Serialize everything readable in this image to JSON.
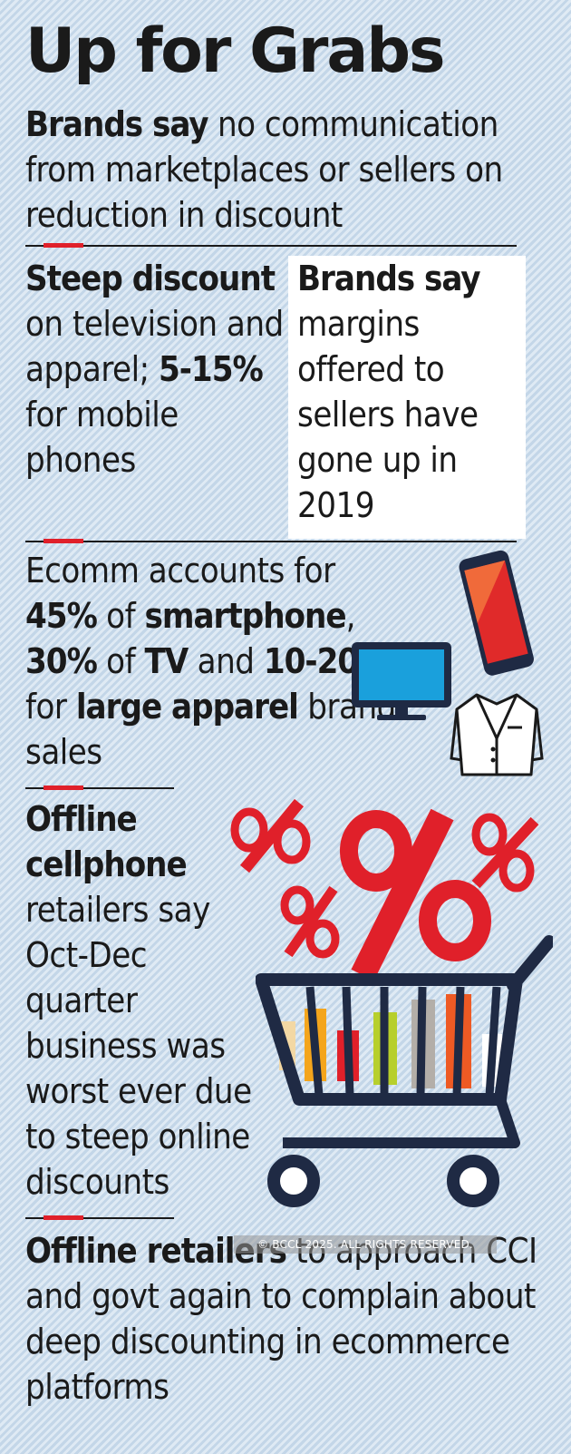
{
  "title": "Up for Grabs",
  "subtitle": {
    "bold": "Brands say",
    "rest": " no communication from marketplaces or sellers on reduction in discount"
  },
  "section1_left": {
    "bold1": "Steep discount",
    "text1": " on television and apparel; ",
    "bold2": "5-15%",
    "text2": " for mobile phones"
  },
  "section1_right": {
    "bold": "Brands say",
    "text": " margins offered to sellers have gone up in 2019"
  },
  "section2": {
    "t1": "Ecomm accounts for ",
    "b1": "45%",
    "t2": " of ",
    "b2": "smartphone",
    "t3": ", ",
    "b3": "30%",
    "t4": " of ",
    "b4": "TV",
    "t5": " and ",
    "b5": "10-20%",
    "t6": " for ",
    "b6": "large apparel",
    "t7": " brand sales"
  },
  "section3": {
    "bold": "Offline cellphone",
    "text": " retailers say Oct-Dec quarter business was worst ever due to steep online discounts"
  },
  "section4": {
    "bold": "Offline retailers",
    "text": " to approach CCI and govt again to complain about deep discounting in ecommerce platforms"
  },
  "watermark": "© BCCL 2025. ALL RIGHTS RESERVED.",
  "colors": {
    "accent_red": "#e0202a",
    "tv_blue": "#1aa0dc",
    "phone_red": "#e02a2a",
    "cart_navy": "#1f2a44"
  },
  "icons": [
    "smartphone-icon",
    "tv-icon",
    "jacket-icon",
    "percent-icons",
    "shopping-cart-icon"
  ]
}
